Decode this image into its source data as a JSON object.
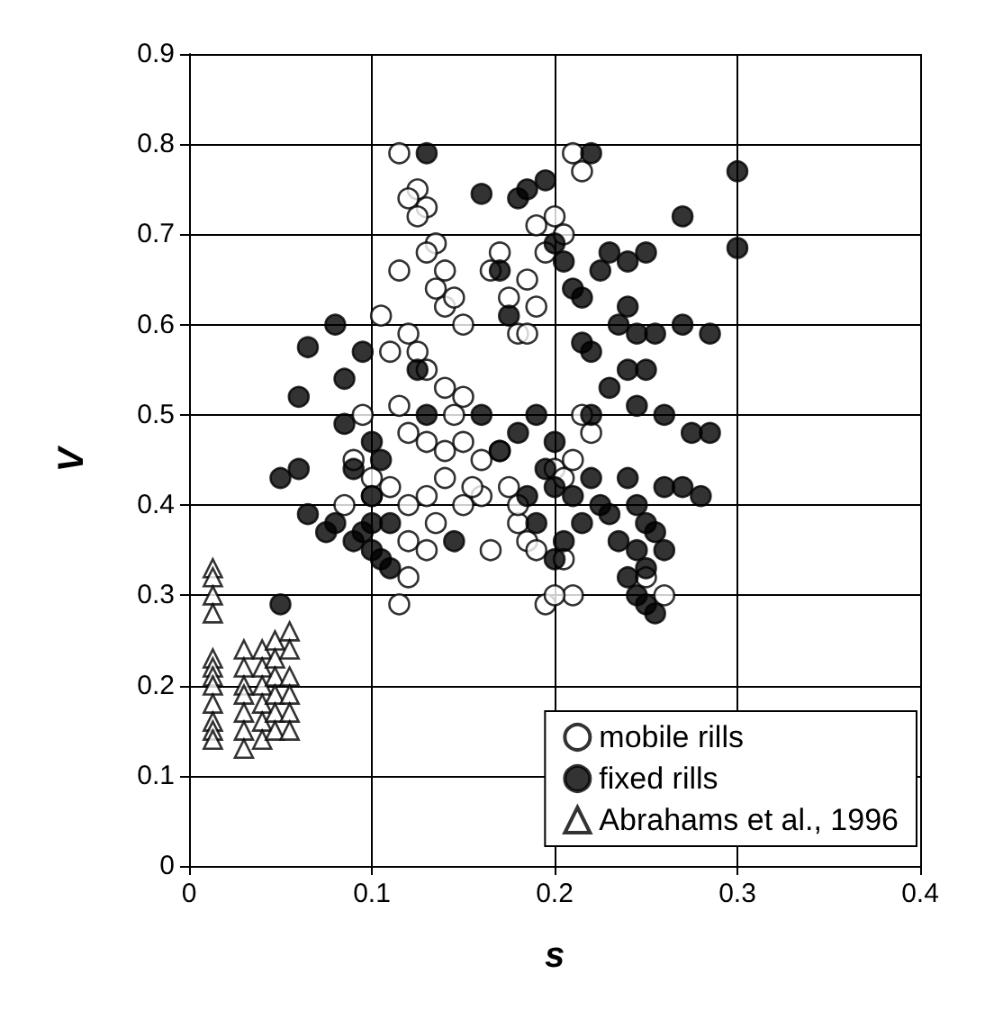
{
  "chart_data": {
    "type": "scatter",
    "xlabel": "s",
    "ylabel": "V",
    "xlim": [
      0,
      0.4
    ],
    "ylim": [
      0,
      0.9
    ],
    "xticks": [
      0,
      0.1,
      0.2,
      0.3,
      0.4
    ],
    "yticks": [
      0,
      0.1,
      0.2,
      0.3,
      0.4,
      0.5,
      0.6,
      0.7,
      0.8,
      0.9
    ],
    "grid": true,
    "legend": "bottom right",
    "series": [
      {
        "name": "mobile rills",
        "color": "#ffffff",
        "marker": "circle",
        "x": [
          0.115,
          0.125,
          0.12,
          0.13,
          0.125,
          0.135,
          0.13,
          0.14,
          0.115,
          0.135,
          0.14,
          0.15,
          0.145,
          0.165,
          0.17,
          0.175,
          0.18,
          0.185,
          0.12,
          0.105,
          0.11,
          0.125,
          0.13,
          0.14,
          0.15,
          0.145,
          0.095,
          0.115,
          0.12,
          0.13,
          0.14,
          0.15,
          0.16,
          0.17,
          0.1,
          0.11,
          0.12,
          0.13,
          0.14,
          0.15,
          0.16,
          0.085,
          0.12,
          0.13,
          0.12,
          0.115,
          0.135,
          0.175,
          0.18,
          0.185,
          0.18,
          0.19,
          0.195,
          0.205,
          0.21,
          0.2,
          0.19,
          0.195,
          0.2,
          0.205,
          0.21,
          0.215,
          0.19,
          0.185,
          0.215,
          0.22,
          0.2,
          0.205,
          0.21,
          0.26,
          0.25,
          0.155,
          0.09,
          0.1,
          0.165
        ],
        "values": [
          0.79,
          0.75,
          0.74,
          0.73,
          0.72,
          0.69,
          0.68,
          0.66,
          0.66,
          0.64,
          0.62,
          0.6,
          0.63,
          0.66,
          0.68,
          0.63,
          0.59,
          0.59,
          0.59,
          0.61,
          0.57,
          0.57,
          0.55,
          0.53,
          0.52,
          0.5,
          0.5,
          0.51,
          0.48,
          0.47,
          0.46,
          0.47,
          0.45,
          0.46,
          0.43,
          0.42,
          0.4,
          0.41,
          0.43,
          0.4,
          0.41,
          0.4,
          0.36,
          0.35,
          0.32,
          0.29,
          0.38,
          0.42,
          0.38,
          0.36,
          0.4,
          0.35,
          0.29,
          0.34,
          0.3,
          0.3,
          0.62,
          0.68,
          0.72,
          0.7,
          0.79,
          0.77,
          0.71,
          0.65,
          0.5,
          0.48,
          0.44,
          0.43,
          0.45,
          0.3,
          0.32,
          0.42,
          0.45,
          0.41,
          0.35
        ]
      },
      {
        "name": "fixed rills",
        "color": "#000000",
        "marker": "circle",
        "x": [
          0.13,
          0.16,
          0.18,
          0.185,
          0.22,
          0.27,
          0.3,
          0.3,
          0.195,
          0.2,
          0.17,
          0.175,
          0.205,
          0.21,
          0.215,
          0.225,
          0.23,
          0.24,
          0.25,
          0.235,
          0.24,
          0.245,
          0.255,
          0.27,
          0.285,
          0.215,
          0.22,
          0.23,
          0.24,
          0.245,
          0.25,
          0.26,
          0.275,
          0.285,
          0.27,
          0.28,
          0.08,
          0.065,
          0.06,
          0.085,
          0.095,
          0.13,
          0.085,
          0.1,
          0.105,
          0.09,
          0.06,
          0.05,
          0.065,
          0.075,
          0.08,
          0.09,
          0.095,
          0.1,
          0.1,
          0.11,
          0.1,
          0.105,
          0.11,
          0.145,
          0.05,
          0.17,
          0.18,
          0.19,
          0.2,
          0.195,
          0.2,
          0.21,
          0.22,
          0.225,
          0.23,
          0.215,
          0.205,
          0.2,
          0.185,
          0.19,
          0.24,
          0.245,
          0.25,
          0.255,
          0.245,
          0.25,
          0.24,
          0.245,
          0.25,
          0.255,
          0.235,
          0.26,
          0.26,
          0.22,
          0.125,
          0.16
        ],
        "values": [
          0.79,
          0.745,
          0.74,
          0.75,
          0.79,
          0.72,
          0.77,
          0.685,
          0.76,
          0.69,
          0.66,
          0.61,
          0.67,
          0.64,
          0.63,
          0.66,
          0.68,
          0.67,
          0.68,
          0.6,
          0.62,
          0.59,
          0.59,
          0.6,
          0.59,
          0.58,
          0.57,
          0.53,
          0.55,
          0.51,
          0.55,
          0.5,
          0.48,
          0.48,
          0.42,
          0.41,
          0.6,
          0.575,
          0.52,
          0.54,
          0.57,
          0.5,
          0.49,
          0.47,
          0.45,
          0.44,
          0.44,
          0.43,
          0.39,
          0.37,
          0.38,
          0.36,
          0.37,
          0.35,
          0.38,
          0.38,
          0.41,
          0.34,
          0.33,
          0.36,
          0.29,
          0.46,
          0.48,
          0.5,
          0.47,
          0.44,
          0.42,
          0.41,
          0.43,
          0.4,
          0.39,
          0.38,
          0.36,
          0.34,
          0.41,
          0.38,
          0.43,
          0.4,
          0.38,
          0.37,
          0.35,
          0.33,
          0.32,
          0.3,
          0.29,
          0.28,
          0.36,
          0.35,
          0.42,
          0.5,
          0.55,
          0.5
        ]
      },
      {
        "name": "Abrahams et al., 1996",
        "color": "#ffffff",
        "marker": "triangle",
        "x": [
          0.013,
          0.013,
          0.013,
          0.013,
          0.013,
          0.013,
          0.013,
          0.013,
          0.013,
          0.013,
          0.013,
          0.013,
          0.03,
          0.03,
          0.03,
          0.03,
          0.03,
          0.03,
          0.03,
          0.04,
          0.04,
          0.04,
          0.04,
          0.04,
          0.04,
          0.047,
          0.047,
          0.047,
          0.047,
          0.047,
          0.047,
          0.055,
          0.055,
          0.055,
          0.055,
          0.055,
          0.055
        ],
        "values": [
          0.33,
          0.32,
          0.3,
          0.28,
          0.23,
          0.22,
          0.21,
          0.2,
          0.18,
          0.16,
          0.15,
          0.14,
          0.24,
          0.22,
          0.2,
          0.19,
          0.17,
          0.15,
          0.13,
          0.24,
          0.22,
          0.2,
          0.18,
          0.16,
          0.14,
          0.25,
          0.23,
          0.21,
          0.19,
          0.17,
          0.15,
          0.26,
          0.24,
          0.21,
          0.19,
          0.17,
          0.15
        ]
      }
    ]
  }
}
